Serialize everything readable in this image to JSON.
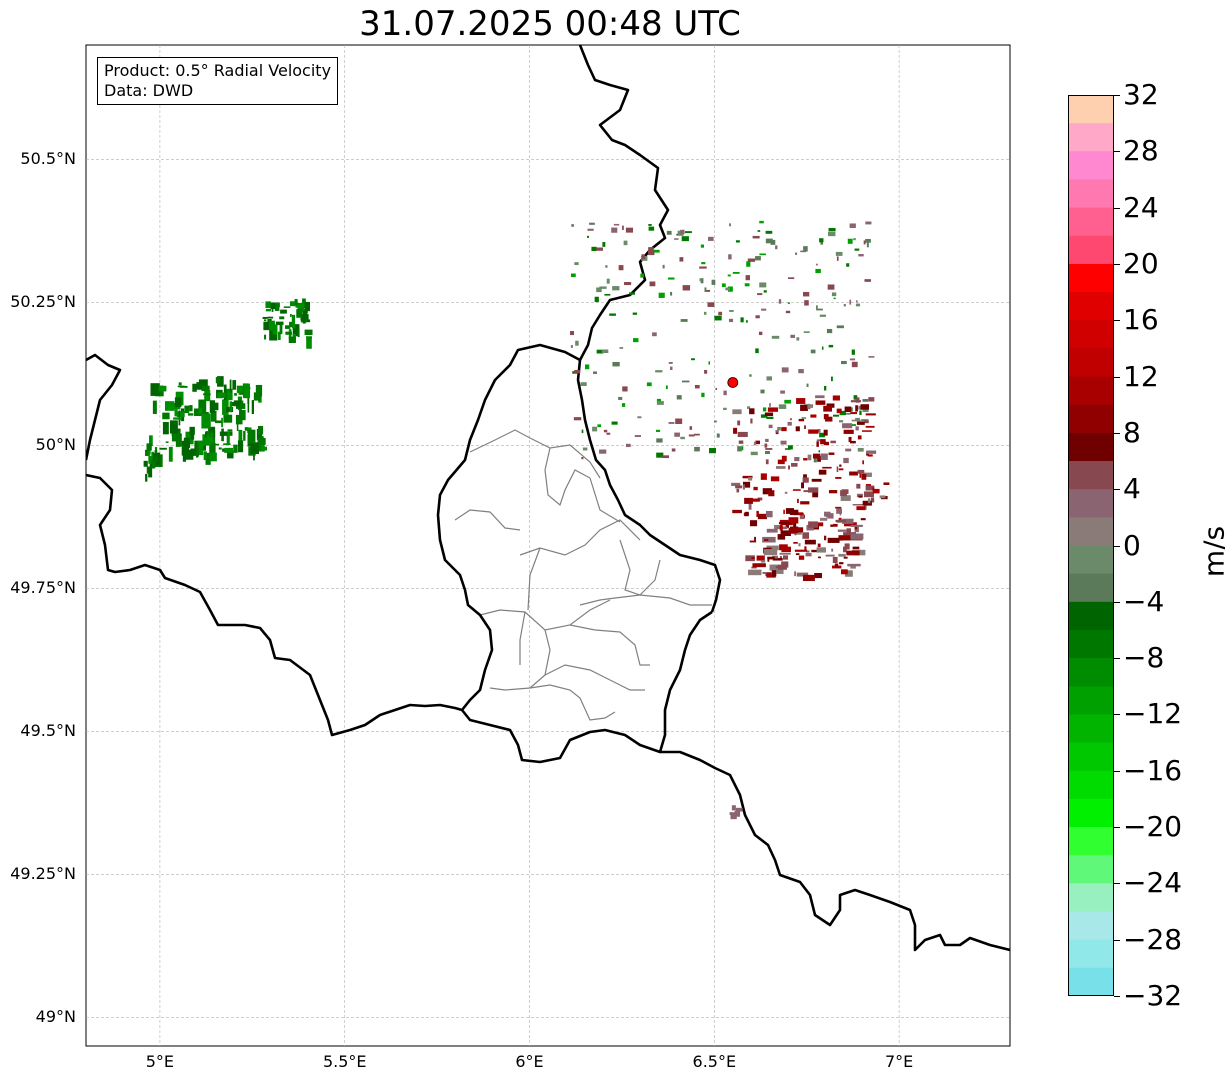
{
  "title": "31.07.2025 00:48 UTC",
  "info": {
    "product_line": "Product: 0.5° Radial Velocity",
    "data_line": "Data: DWD"
  },
  "map": {
    "lon_range": [
      4.8,
      7.3
    ],
    "lat_range": [
      48.95,
      50.7
    ],
    "lat_ticks": [
      {
        "value": 50.5,
        "label": "50.5°N"
      },
      {
        "value": 50.25,
        "label": "50.25°N"
      },
      {
        "value": 50.0,
        "label": "50°N"
      },
      {
        "value": 49.75,
        "label": "49.75°N"
      },
      {
        "value": 49.5,
        "label": "49.5°N"
      },
      {
        "value": 49.25,
        "label": "49.25°N"
      },
      {
        "value": 49.0,
        "label": "49°N"
      }
    ],
    "lon_ticks": [
      {
        "value": 5.0,
        "label": "5°E"
      },
      {
        "value": 5.5,
        "label": "5.5°E"
      },
      {
        "value": 6.0,
        "label": "6°E"
      },
      {
        "value": 6.5,
        "label": "6.5°E"
      },
      {
        "value": 7.0,
        "label": "7°E"
      }
    ],
    "radar_site": {
      "lon": 6.55,
      "lat": 50.11,
      "color": "#ff0000"
    },
    "border_color": "#000000",
    "admin_color": "#808080",
    "grid": true
  },
  "colorbar": {
    "unit": "m/s",
    "min": -32,
    "max": 32,
    "tick_labels": [
      "32",
      "28",
      "24",
      "20",
      "16",
      "12",
      "8",
      "4",
      "0",
      "−4",
      "−8",
      "−12",
      "−16",
      "−20",
      "−24",
      "−28",
      "−32"
    ],
    "colors_top_to_bottom": [
      "#ffd0b0",
      "#ffa8c8",
      "#ff88d0",
      "#ff78b0",
      "#ff6090",
      "#ff4870",
      "#ff0000",
      "#e00000",
      "#d00000",
      "#c00000",
      "#a80000",
      "#900000",
      "#700000",
      "#884850",
      "#8a6470",
      "#8a7a78",
      "#6a8a6a",
      "#5a7a5a",
      "#006400",
      "#007800",
      "#008c00",
      "#00a000",
      "#00b400",
      "#00c800",
      "#00dc00",
      "#00f000",
      "#30ff30",
      "#60f878",
      "#98f0c0",
      "#a8e8e8",
      "#90e8e8",
      "#78e0e8"
    ]
  }
}
